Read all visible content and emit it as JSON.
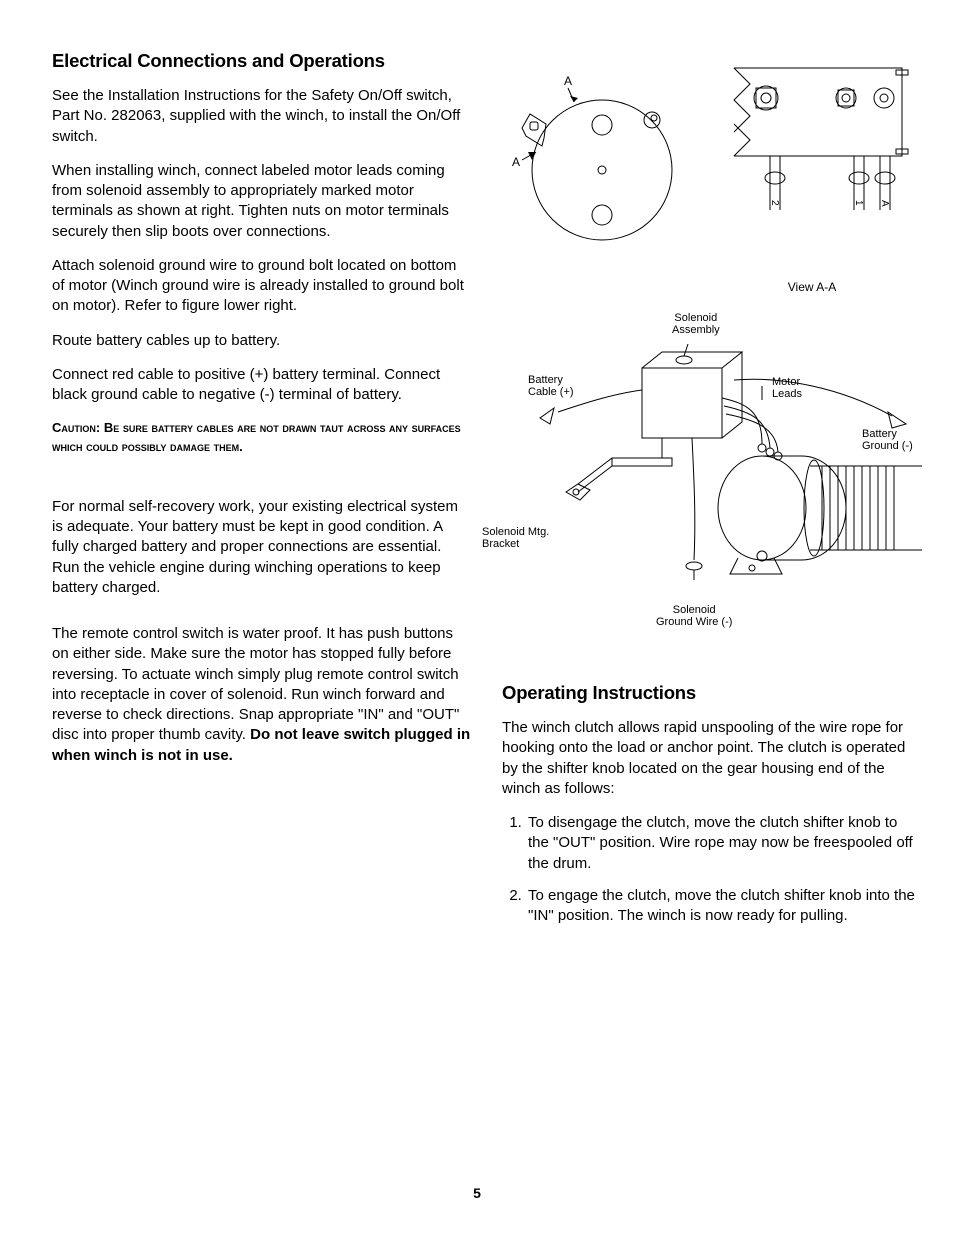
{
  "page_number": "5",
  "left": {
    "heading": "Electrical Connections and Operations",
    "p1": "See the Installation Instructions for the Safety On/Off switch, Part No. 282063, supplied with the winch, to install the On/Off switch.",
    "p2": "When installing winch, connect labeled motor leads coming from solenoid assembly to appropriately marked motor terminals as shown at right. Tighten nuts on motor terminals securely then slip boots over connections.",
    "p3": "Attach solenoid ground wire to ground bolt located on bottom of motor (Winch ground wire is already installed to ground bolt on motor). Refer to figure lower right.",
    "p4": "Route battery cables up to battery.",
    "p5": "Connect red cable to positive (+) battery terminal. Connect black ground cable to negative (-) terminal of battery.",
    "caution": "Caution: Be sure battery cables are not drawn taut across any surfaces which could possibly damage them.",
    "p6": "For normal self-recovery work, your existing electrical system is adequate. Your battery must be kept in good condition. A fully charged battery and proper connections are essential. Run the vehicle engine during winching operations to keep battery charged.",
    "p7a": "The remote control switch is water proof. It has push buttons on either side. Make sure the motor has stopped fully before reversing. To actuate winch simply plug remote control switch into receptacle in cover of solenoid. Run winch forward and reverse to check directions. Snap appropriate \"IN\" and \"OUT\" disc into proper thumb cavity. ",
    "p7b": "Do not leave switch plugged in when winch is not in use."
  },
  "right": {
    "fig_top": {
      "caption": "View A-A",
      "label_A_top": "A",
      "label_A_left": "A",
      "term_2": "2",
      "term_1": "1",
      "term_A": "A"
    },
    "fig_bottom": {
      "labels": {
        "solenoid_assembly": "Solenoid\nAssembly",
        "battery_cable": "Battery\nCable (+)",
        "motor_leads": "Motor\nLeads",
        "battery_ground": "Battery\nGround (-)",
        "solenoid_mtg": "Solenoid Mtg.\nBracket",
        "solenoid_ground": "Solenoid\nGround Wire (-)"
      }
    },
    "operating": {
      "heading": "Operating Instructions",
      "p1": "The winch clutch allows rapid unspooling of the wire rope for hooking onto the load or anchor point. The clutch is operated by the shifter knob located on the gear housing end of the winch as follows:",
      "step1": "To disengage the clutch, move the clutch shifter knob to the \"OUT\" position. Wire rope may now be freespooled off the drum.",
      "step2": "To engage the clutch, move the clutch shifter knob into the \"IN\" position. The winch is now ready for pulling."
    }
  },
  "style": {
    "text_color": "#000000",
    "bg_color": "#ffffff",
    "line_color": "#000000",
    "heading_fontsize": 18.5,
    "body_fontsize": 15,
    "caution_fontsize": 13,
    "label_fontsize": 11
  }
}
